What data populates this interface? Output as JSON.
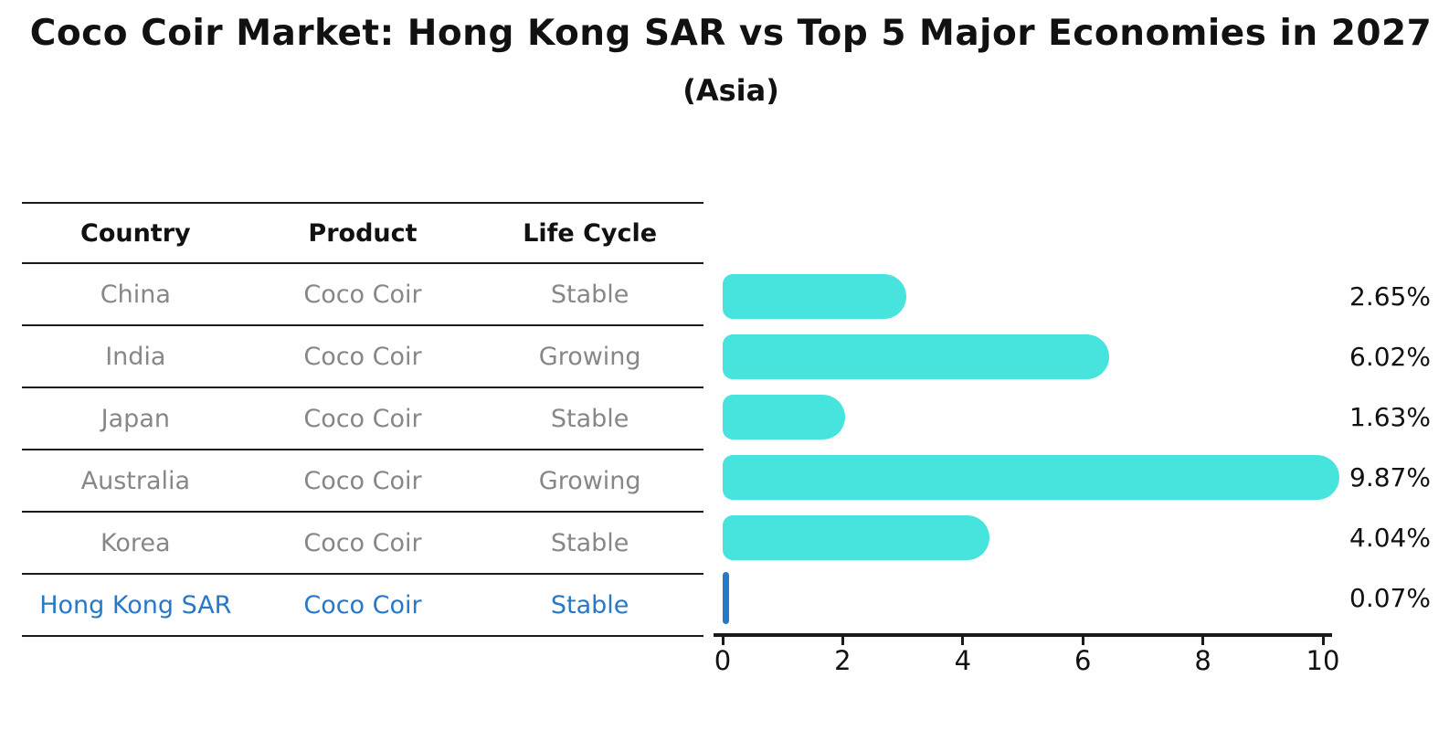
{
  "title": {
    "text": "Coco Coir Market: Hong Kong SAR vs Top 5 Major Economies in 2027",
    "subtitle": "(Asia)"
  },
  "table": {
    "headers": [
      "Country",
      "Product",
      "Life Cycle"
    ],
    "rows": [
      {
        "country": "China",
        "product": "Coco Coir",
        "life_cycle": "Stable",
        "highlighted": false
      },
      {
        "country": "India",
        "product": "Coco Coir",
        "life_cycle": "Growing",
        "highlighted": false
      },
      {
        "country": "Japan",
        "product": "Coco Coir",
        "life_cycle": "Stable",
        "highlighted": false
      },
      {
        "country": "Australia",
        "product": "Coco Coir",
        "life_cycle": "Growing",
        "highlighted": false
      },
      {
        "country": "Korea",
        "product": "Coco Coir",
        "life_cycle": "Stable",
        "highlighted": false
      },
      {
        "country": "Hong Kong SAR",
        "product": "Coco Coir",
        "life_cycle": "Stable",
        "highlighted": true
      }
    ]
  },
  "chart_data": {
    "type": "bar",
    "orientation": "horizontal",
    "title": "Coco Coir Market: Hong Kong SAR vs Top 5 Major Economies in 2027 (Asia)",
    "categories": [
      "China",
      "India",
      "Japan",
      "Australia",
      "Korea",
      "Hong Kong SAR"
    ],
    "values": [
      2.65,
      6.02,
      1.63,
      9.87,
      4.04,
      0.07
    ],
    "value_labels": [
      "2.65%",
      "6.02%",
      "1.63%",
      "9.87%",
      "4.04%",
      "0.07%"
    ],
    "unit": "%",
    "x_ticks": [
      0,
      2,
      4,
      6,
      8,
      10
    ],
    "xlim": [
      0,
      10
    ],
    "grid": false,
    "legend": null,
    "highlight_index": 5,
    "bar_color": "#47E4DD",
    "highlight_color": "#2878C8"
  },
  "colors": {
    "bar": "#47E4DD",
    "accent": "#2878C8",
    "muted_text": "#878787",
    "ink": "#1a1a1a"
  }
}
